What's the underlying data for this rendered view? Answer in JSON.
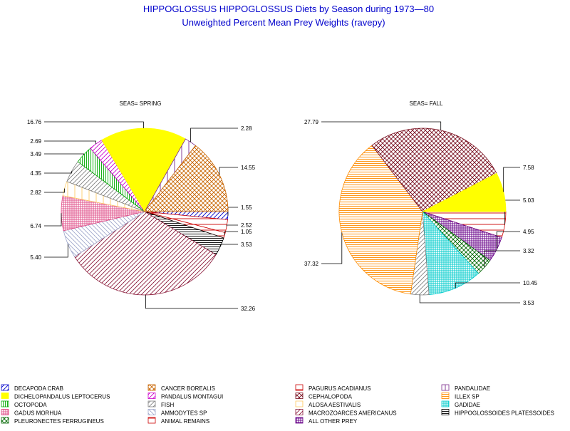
{
  "title": "HIPPOGLOSSUS HIPPOGLOSSUS Diets by Season during 1973—80",
  "subtitle": "Unweighted Percent Mean Prey Weights (ravepy)",
  "colors": {
    "title": "#0000cc",
    "text": "#000000"
  },
  "legend_placement": "bottom",
  "categories": [
    {
      "key": "decapoda_crab",
      "label": "DECAPODA CRAB",
      "color": "#0000cc",
      "pattern": "diag-right-sparse"
    },
    {
      "key": "cancer_borealis",
      "label": "CANCER BOREALIS",
      "color": "#c86400",
      "pattern": "crosshatch-diag"
    },
    {
      "key": "pagurus_acadianus",
      "label": "PAGURUS ACADIANUS",
      "color": "#cc0000",
      "pattern": "horizontal-sparse"
    },
    {
      "key": "pandalidae",
      "label": "PANDALIDAE",
      "color": "#7a2a8c",
      "pattern": "vertical-sparse"
    },
    {
      "key": "dichelopandalus",
      "label": "DICHELOPANDALUS LEPTOCERUS",
      "color": "#ffff00",
      "pattern": "solid"
    },
    {
      "key": "pandalus_montagui",
      "label": "PANDALUS MONTAGUI",
      "color": "#cc00cc",
      "pattern": "diag-right"
    },
    {
      "key": "cephalopoda",
      "label": "CEPHALOPODA",
      "color": "#7a1020",
      "pattern": "crosshatch-diag-dense"
    },
    {
      "key": "illex_sp",
      "label": "ILLEX SP",
      "color": "#ff8c00",
      "pattern": "horizontal"
    },
    {
      "key": "octopoda",
      "label": "OCTOPODA",
      "color": "#00aa00",
      "pattern": "vertical"
    },
    {
      "key": "fish",
      "label": "FISH",
      "color": "#808080",
      "pattern": "diag-right"
    },
    {
      "key": "alosa_aestivalis",
      "label": "ALOSA AESTIVALIS",
      "color": "#ffcc66",
      "pattern": "vertical-sparse"
    },
    {
      "key": "gadidae",
      "label": "GADIDAE",
      "color": "#00cccc",
      "pattern": "crosshatch"
    },
    {
      "key": "gadus_morhua",
      "label": "GADUS MORHUA",
      "color": "#e0508a",
      "pattern": "crosshatch"
    },
    {
      "key": "ammodytes_sp",
      "label": "AMMODYTES SP",
      "color": "#a0a8cc",
      "pattern": "diag-left"
    },
    {
      "key": "macrozoarces",
      "label": "MACROZOARCES AMERICANUS",
      "color": "#8b1a3a",
      "pattern": "diag-right"
    },
    {
      "key": "hippoglossoides",
      "label": "HIPPOGLOSSOIDES PLATESSOIDES",
      "color": "#000000",
      "pattern": "horizontal"
    },
    {
      "key": "pleuronectes",
      "label": "PLEURONECTES FERRUGINEUS",
      "color": "#006600",
      "pattern": "crosshatch-diag"
    },
    {
      "key": "animal_remains",
      "label": "ANIMAL REMAINS",
      "color": "#cc0000",
      "pattern": "horizontal-sparse"
    },
    {
      "key": "all_other_prey",
      "label": "ALL OTHER PREY",
      "color": "#660088",
      "pattern": "crosshatch"
    }
  ],
  "chart_data": [
    {
      "type": "pie",
      "title": "SEAS= SPRING",
      "slices": [
        {
          "category": "decapoda_crab",
          "value": 1.55,
          "label": "1.55"
        },
        {
          "category": "pagurus_acadianus",
          "value": 2.52,
          "label": "2.52"
        },
        {
          "category": "animal_remains",
          "value": 1.05,
          "label": "1.05"
        },
        {
          "category": "hippoglossoides",
          "value": 3.53,
          "label": "3.53"
        },
        {
          "category": "macrozoarces",
          "value": 32.26,
          "label": "32.26"
        },
        {
          "category": "ammodytes_sp",
          "value": 5.4,
          "label": "5.40"
        },
        {
          "category": "gadus_morhua",
          "value": 6.74,
          "label": "6.74"
        },
        {
          "category": "alosa_aestivalis",
          "value": 2.82,
          "label": "2.82"
        },
        {
          "category": "fish",
          "value": 4.35,
          "label": "4.35"
        },
        {
          "category": "octopoda",
          "value": 3.49,
          "label": "3.49"
        },
        {
          "category": "pandalus_montagui",
          "value": 2.69,
          "label": "2.69"
        },
        {
          "category": "dichelopandalus",
          "value": 16.76,
          "label": "16.76"
        },
        {
          "category": "pandalidae",
          "value": 2.28,
          "label": "2.28"
        },
        {
          "category": "cancer_borealis",
          "value": 14.55,
          "label": "14.55"
        },
        {
          "category": "all_other_prey",
          "value": 0.0,
          "label": ""
        }
      ]
    },
    {
      "type": "pie",
      "title": "SEAS= FALL",
      "slices": [
        {
          "category": "pagurus_acadianus",
          "value": 5.03,
          "label": "5.03"
        },
        {
          "category": "all_other_prey",
          "value": 4.95,
          "label": "4.95"
        },
        {
          "category": "pleuronectes",
          "value": 3.32,
          "label": "3.32"
        },
        {
          "category": "gadidae",
          "value": 10.45,
          "label": "10.45"
        },
        {
          "category": "fish",
          "value": 3.53,
          "label": "3.53"
        },
        {
          "category": "illex_sp",
          "value": 37.32,
          "label": "37.32"
        },
        {
          "category": "cephalopoda",
          "value": 27.79,
          "label": "27.79"
        },
        {
          "category": "dichelopandalus",
          "value": 7.58,
          "label": "7.58"
        }
      ]
    }
  ]
}
